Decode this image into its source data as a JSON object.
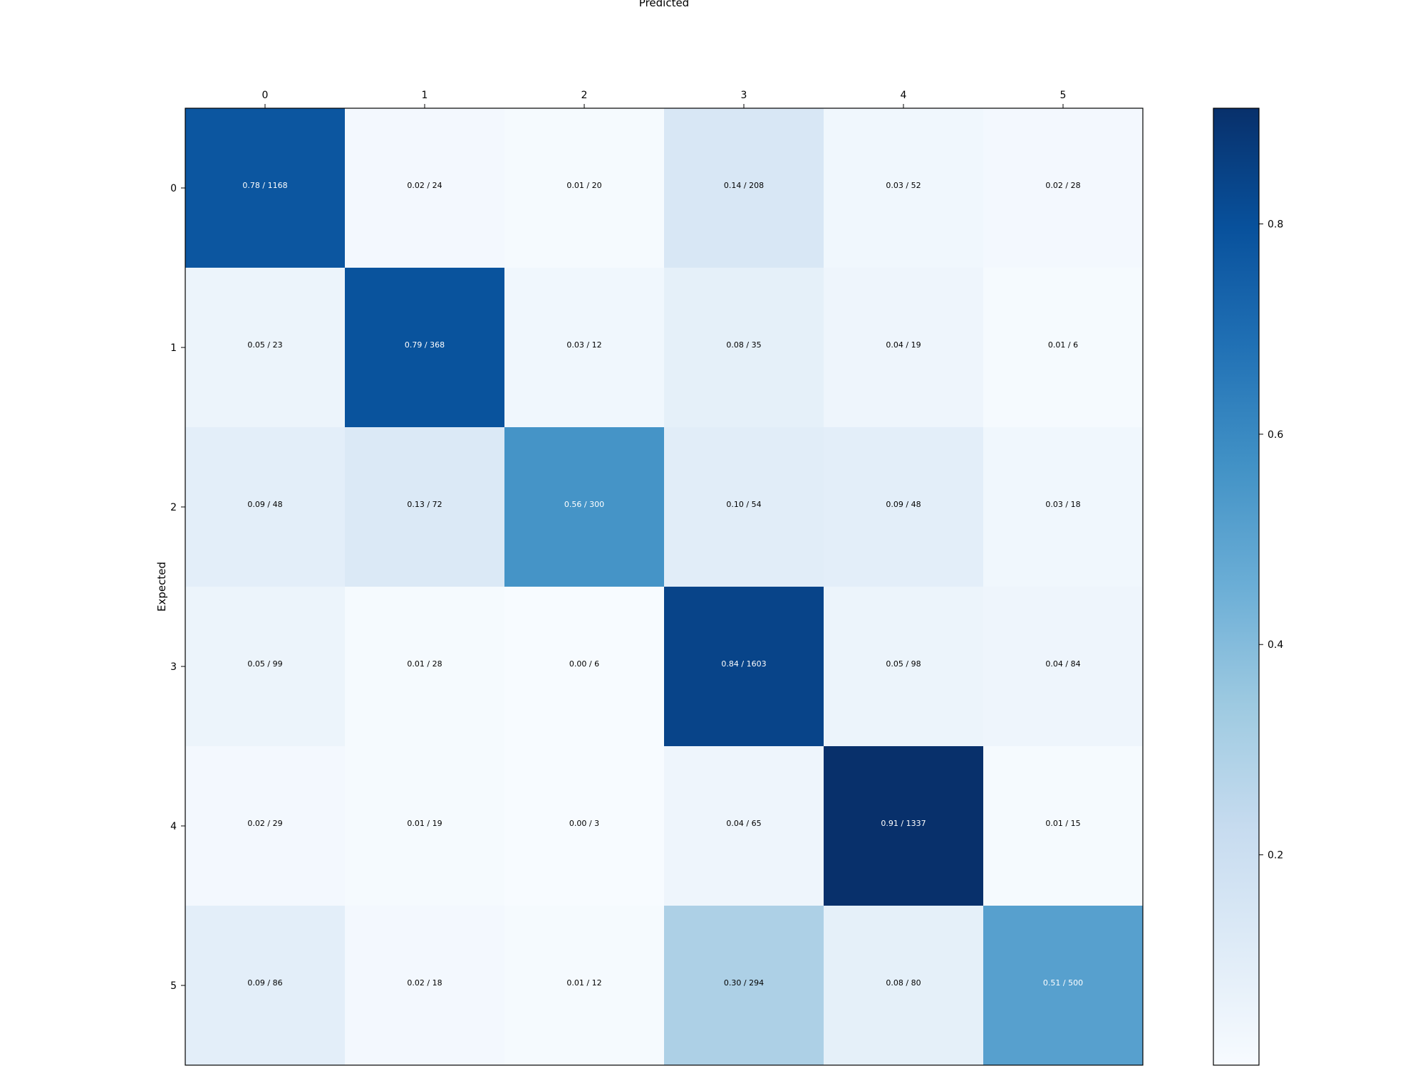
{
  "chart_data": {
    "type": "heatmap",
    "title": "",
    "xlabel": "Predicted",
    "ylabel": "Expected",
    "x_categories": [
      "0",
      "1",
      "2",
      "3",
      "4",
      "5"
    ],
    "y_categories": [
      "0",
      "1",
      "2",
      "3",
      "4",
      "5"
    ],
    "x_axis_position": "top",
    "colormap": "Blues",
    "value_range": [
      0.0,
      0.91
    ],
    "values": [
      [
        0.78,
        0.02,
        0.01,
        0.14,
        0.03,
        0.02
      ],
      [
        0.05,
        0.79,
        0.03,
        0.08,
        0.04,
        0.01
      ],
      [
        0.09,
        0.13,
        0.56,
        0.1,
        0.09,
        0.03
      ],
      [
        0.05,
        0.01,
        0.0,
        0.84,
        0.05,
        0.04
      ],
      [
        0.02,
        0.01,
        0.0,
        0.04,
        0.91,
        0.01
      ],
      [
        0.09,
        0.02,
        0.01,
        0.3,
        0.08,
        0.51
      ]
    ],
    "counts": [
      [
        1168,
        24,
        20,
        208,
        52,
        28
      ],
      [
        23,
        368,
        12,
        35,
        19,
        6
      ],
      [
        48,
        72,
        300,
        54,
        48,
        18
      ],
      [
        99,
        28,
        6,
        1603,
        98,
        84
      ],
      [
        29,
        19,
        3,
        65,
        1337,
        15
      ],
      [
        86,
        18,
        12,
        294,
        80,
        500
      ]
    ],
    "cell_labels": [
      [
        "0.78 / 1168",
        "0.02 / 24",
        "0.01 / 20",
        "0.14 / 208",
        "0.03 / 52",
        "0.02 / 28"
      ],
      [
        "0.05 / 23",
        "0.79 / 368",
        "0.03 / 12",
        "0.08 / 35",
        "0.04 / 19",
        "0.01 / 6"
      ],
      [
        "0.09 / 48",
        "0.13 / 72",
        "0.56 / 300",
        "0.10 / 54",
        "0.09 / 48",
        "0.03 / 18"
      ],
      [
        "0.05 / 99",
        "0.01 / 28",
        "0.00 / 6",
        "0.84 / 1603",
        "0.05 / 98",
        "0.04 / 84"
      ],
      [
        "0.02 / 29",
        "0.01 / 19",
        "0.00 / 3",
        "0.04 / 65",
        "0.91 / 1337",
        "0.01 / 15"
      ],
      [
        "0.09 / 86",
        "0.02 / 18",
        "0.01 / 12",
        "0.30 / 294",
        "0.08 / 80",
        "0.51 / 500"
      ]
    ],
    "colorbar": {
      "ticks": [
        0.2,
        0.4,
        0.6,
        0.8
      ],
      "tick_labels": [
        "0.2",
        "0.4",
        "0.6",
        "0.8"
      ],
      "range": [
        0.0,
        0.91
      ]
    }
  }
}
